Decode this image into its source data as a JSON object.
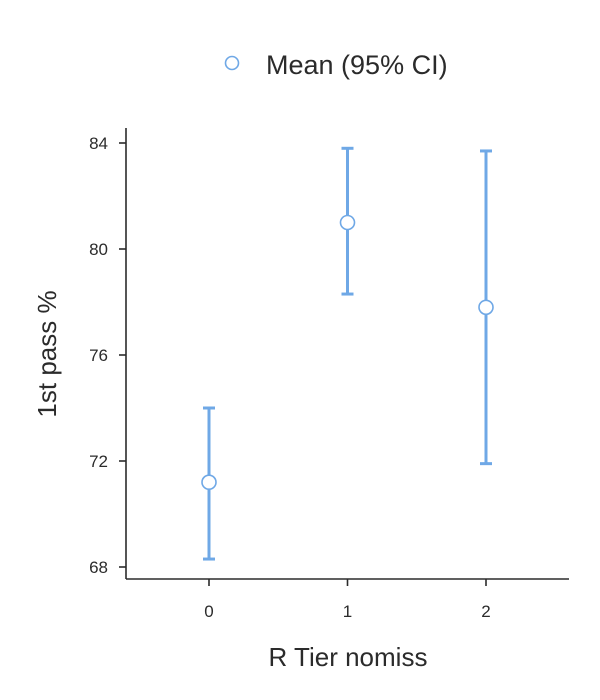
{
  "chart_data": {
    "type": "scatter",
    "title": "",
    "xlabel": "R Tier nomiss",
    "ylabel": "1st pass %",
    "categories": [
      "0",
      "1",
      "2"
    ],
    "yticks": [
      "68",
      "72",
      "76",
      "80",
      "84"
    ],
    "ylim": [
      67.6,
      84.5
    ],
    "xlim": [
      -0.6,
      2.6
    ],
    "grid": false,
    "legend_position": "top",
    "series": [
      {
        "name": "Mean (95% CI)",
        "color": "#6fa8e6",
        "points": [
          {
            "x": "0",
            "mean": 71.2,
            "lower": 68.3,
            "upper": 74.0
          },
          {
            "x": "1",
            "mean": 81.0,
            "lower": 78.3,
            "upper": 83.8
          },
          {
            "x": "2",
            "mean": 77.8,
            "lower": 71.9,
            "upper": 83.7
          }
        ]
      }
    ]
  }
}
